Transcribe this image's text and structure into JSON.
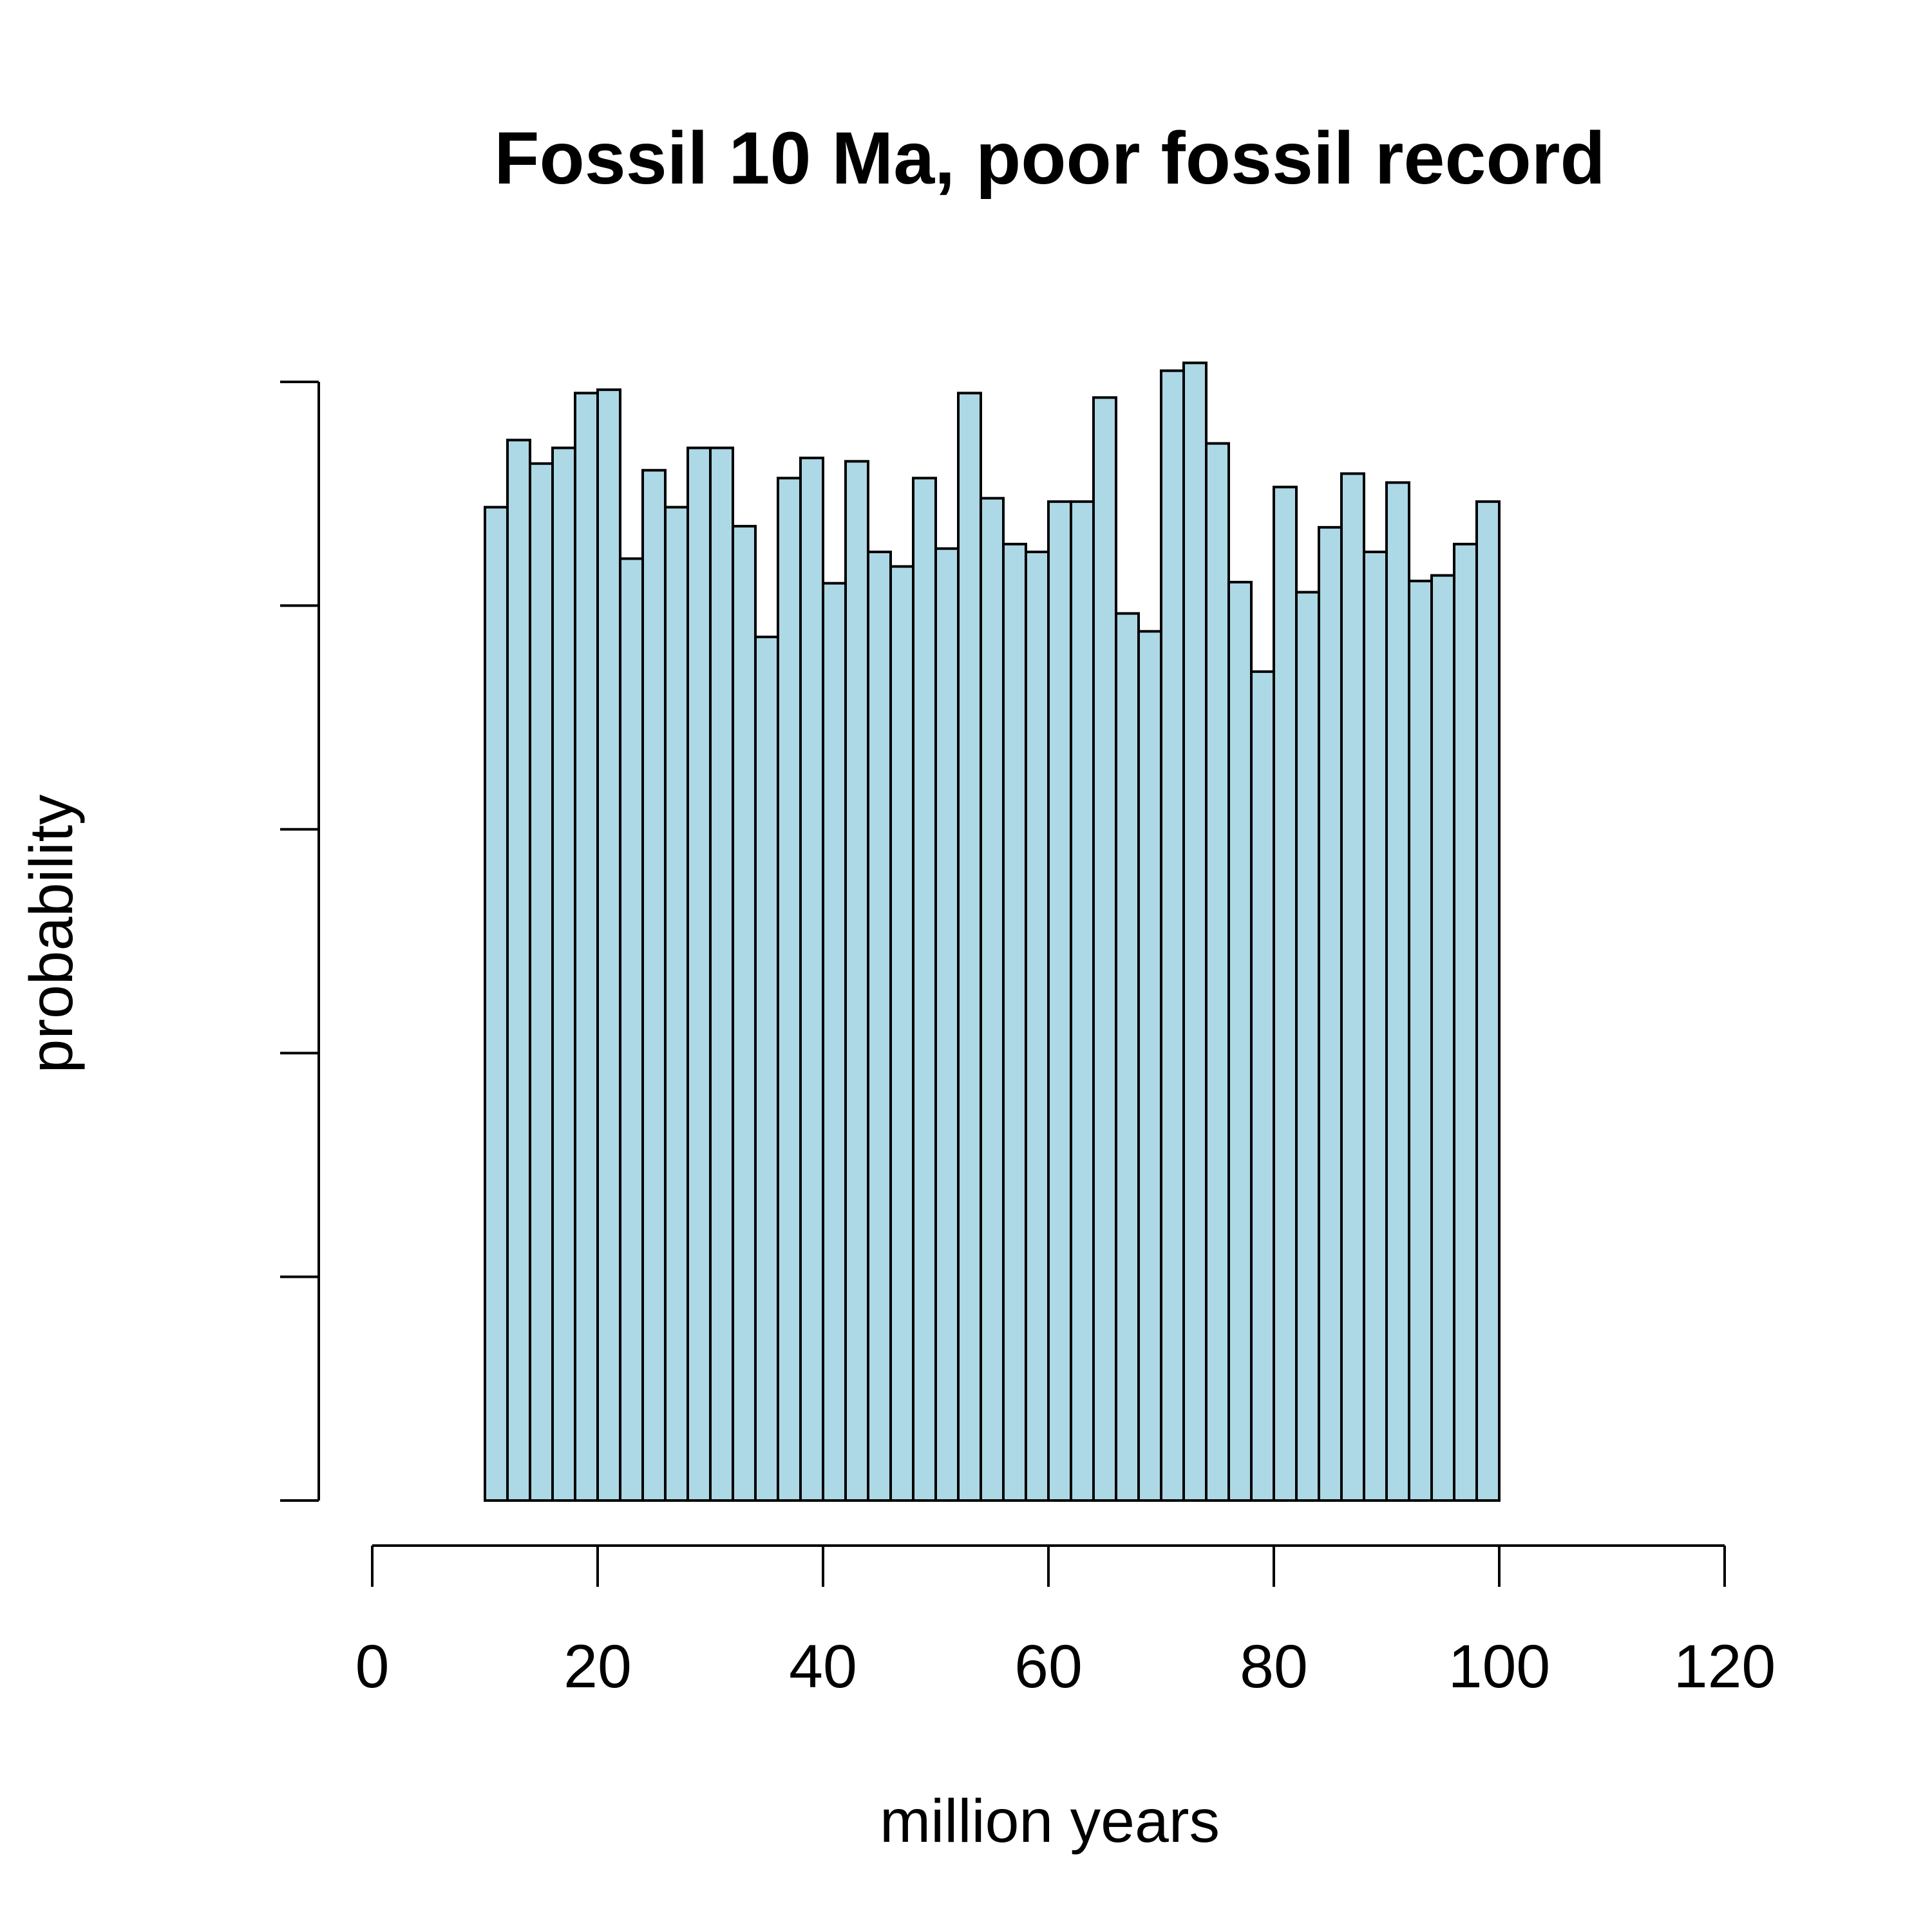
{
  "chart_data": {
    "type": "bar",
    "subtype": "histogram",
    "title": "Fossil 10 Ma, poor fossil record",
    "xlabel": "million years",
    "ylabel": "probability",
    "xlim": [
      0,
      120
    ],
    "x_ticks": [
      0,
      20,
      40,
      60,
      80,
      100,
      120
    ],
    "y_tick_count": 6,
    "y_ticks_labeled": false,
    "ylim": [
      0,
      1.0
    ],
    "bin_width": 2,
    "bin_start": 10,
    "bin_end": 100,
    "values": [
      0.888,
      0.948,
      0.927,
      0.941,
      0.99,
      0.993,
      0.842,
      0.921,
      0.888,
      0.941,
      0.941,
      0.871,
      0.772,
      0.914,
      0.932,
      0.82,
      0.929,
      0.848,
      0.835,
      0.914,
      0.851,
      0.99,
      0.896,
      0.855,
      0.848,
      0.893,
      0.893,
      0.986,
      0.793,
      0.777,
      1.01,
      1.017,
      0.945,
      0.821,
      0.741,
      0.906,
      0.812,
      0.87,
      0.918,
      0.848,
      0.91,
      0.822,
      0.827,
      0.855,
      0.893
    ],
    "bar_color": "#add8e6",
    "edge_color": "#000000",
    "grid": false,
    "legend": "none"
  }
}
